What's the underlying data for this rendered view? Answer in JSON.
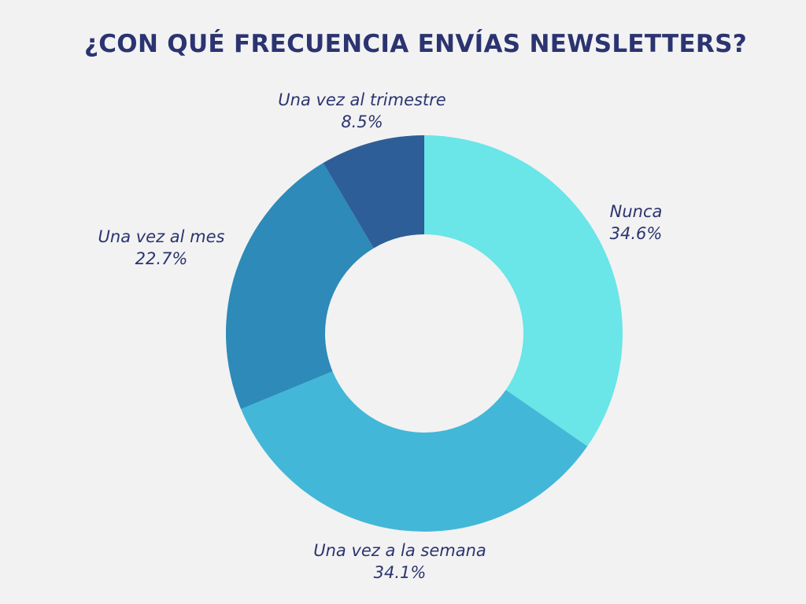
{
  "chart_data": {
    "type": "pie",
    "variant": "donut",
    "title": "¿CON QUÉ FRECUENCIA ENVÍAS NEWSLETTERS?",
    "slices": [
      {
        "label": "Nunca",
        "value": 34.6,
        "display": "34.6%",
        "color": "#6ae5e8"
      },
      {
        "label": "Una vez a la semana",
        "value": 34.1,
        "display": "34.1%",
        "color": "#43b7d7"
      },
      {
        "label": "Una vez al mes",
        "value": 22.7,
        "display": "22.7%",
        "color": "#2d8ab9"
      },
      {
        "label": "Una vez al trimestre",
        "value": 8.5,
        "display": "8.5%",
        "color": "#2e5e98"
      }
    ],
    "start_angle": "12 o'clock",
    "direction": "clockwise",
    "text_color": "#2b3470",
    "background": "#f2f2f2"
  }
}
